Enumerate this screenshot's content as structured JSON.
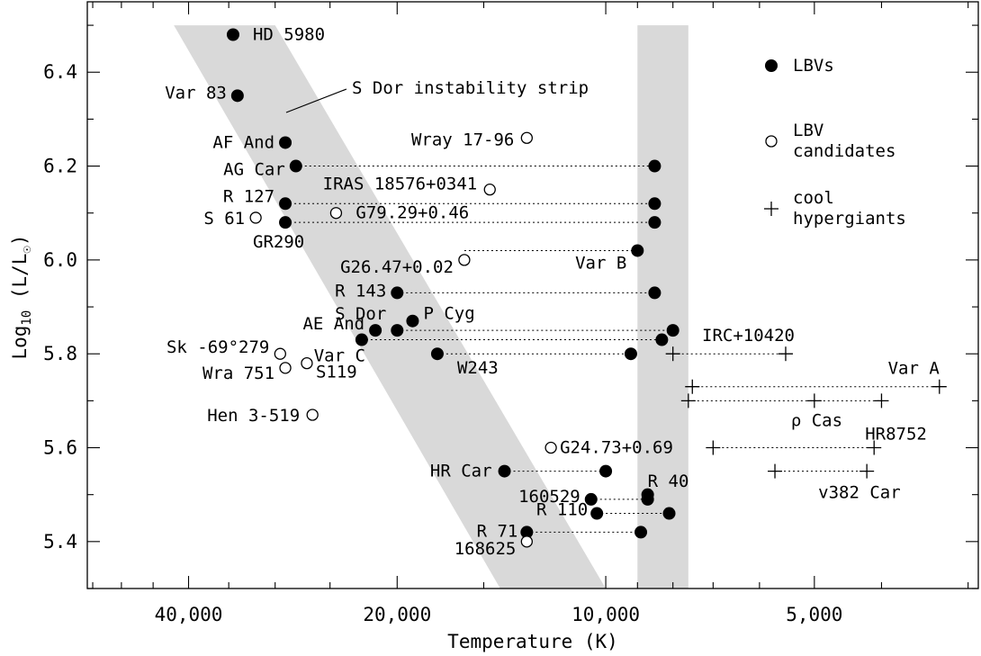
{
  "chart_data": {
    "type": "scatter",
    "xlabel": "Temperature (K)",
    "ylabel_prefix": "Log",
    "ylabel_sub": "10",
    "ylabel_suffix": " (L/L",
    "ylabel_end": ")",
    "x_scale": "log",
    "x_reversed": true,
    "xlim": [
      56000,
      2900
    ],
    "ylim": [
      5.3,
      6.55
    ],
    "x_ticks": [
      {
        "value": 40000,
        "label": "40,000"
      },
      {
        "value": 20000,
        "label": "20,000"
      },
      {
        "value": 10000,
        "label": "10,000"
      },
      {
        "value": 5000,
        "label": "5,000"
      }
    ],
    "y_ticks": [
      {
        "value": 5.4,
        "label": "5.4"
      },
      {
        "value": 5.6,
        "label": "5.6"
      },
      {
        "value": 5.8,
        "label": "5.8"
      },
      {
        "value": 6.0,
        "label": "6.0"
      },
      {
        "value": 6.2,
        "label": "6.2"
      },
      {
        "value": 6.4,
        "label": "6.4"
      }
    ],
    "grid": false,
    "legend_position": "top-right",
    "legend": [
      {
        "marker": "filled",
        "lines": [
          "LBVs"
        ]
      },
      {
        "marker": "open",
        "lines": [
          "LBV",
          "candidates"
        ]
      },
      {
        "marker": "plus",
        "lines": [
          "cool",
          "hypergiants"
        ]
      }
    ],
    "annotations": [
      {
        "text": "S Dor instability strip"
      }
    ],
    "bands": [
      {
        "name": "S Dor instability strip",
        "color": "#d9d9d9",
        "top": {
          "y": 6.5,
          "x": [
            42000,
            30000
          ]
        },
        "bottom": {
          "y": 5.3,
          "x": [
            14200,
            10000
          ]
        }
      },
      {
        "name": "eruption band",
        "color": "#d9d9d9",
        "x": [
          9000,
          7600
        ],
        "y": [
          5.3,
          6.5
        ]
      }
    ],
    "series": [
      {
        "name": "LBVs",
        "marker": "filled",
        "points": [
          {
            "label": "HD 5980",
            "x": 34500,
            "y": 6.48
          },
          {
            "label": "Var 83",
            "x": 34000,
            "y": 6.35
          },
          {
            "label": "AF And",
            "x": 29000,
            "y": 6.25
          },
          {
            "label": "AG Car",
            "x": 28000,
            "y": 6.2
          },
          {
            "label": "",
            "x": 8500,
            "y": 6.2
          },
          {
            "label": "R 127",
            "x": 29000,
            "y": 6.12
          },
          {
            "label": "",
            "x": 8500,
            "y": 6.12
          },
          {
            "label": "GR290",
            "x": 29000,
            "y": 6.08
          },
          {
            "label": "",
            "x": 8500,
            "y": 6.08
          },
          {
            "label": "Var B",
            "x": 9000,
            "y": 6.02
          },
          {
            "label": "R 143",
            "x": 20000,
            "y": 5.93
          },
          {
            "label": "",
            "x": 8500,
            "y": 5.93
          },
          {
            "label": "P Cyg",
            "x": 19000,
            "y": 5.87
          },
          {
            "label": "S Dor",
            "x": 20000,
            "y": 5.85
          },
          {
            "label": "",
            "x": 8000,
            "y": 5.85
          },
          {
            "label": "AE And",
            "x": 21500,
            "y": 5.85
          },
          {
            "label": "",
            "x": 8300,
            "y": 5.83
          },
          {
            "label": "Var C",
            "x": 22500,
            "y": 5.83
          },
          {
            "label": "W243",
            "x": 17500,
            "y": 5.8
          },
          {
            "label": "",
            "x": 9200,
            "y": 5.8
          },
          {
            "label": "HR Car",
            "x": 14000,
            "y": 5.55
          },
          {
            "label": "",
            "x": 10000,
            "y": 5.55
          },
          {
            "label": "160529",
            "x": 10500,
            "y": 5.49
          },
          {
            "label": "",
            "x": 8700,
            "y": 5.5
          },
          {
            "label": "R 40",
            "x": 8700,
            "y": 5.49
          },
          {
            "label": "R 110",
            "x": 10300,
            "y": 5.46
          },
          {
            "label": "",
            "x": 8100,
            "y": 5.46
          },
          {
            "label": "R 71",
            "x": 13000,
            "y": 5.42
          },
          {
            "label": "",
            "x": 8900,
            "y": 5.42
          }
        ]
      },
      {
        "name": "LBV candidates",
        "marker": "open",
        "points": [
          {
            "label": "Wray 17-96",
            "x": 13000,
            "y": 6.26
          },
          {
            "label": "IRAS 18576+0341",
            "x": 14700,
            "y": 6.15
          },
          {
            "label": "G79.29+0.46",
            "x": 24500,
            "y": 6.1
          },
          {
            "label": "S 61",
            "x": 32000,
            "y": 6.09
          },
          {
            "label": "G26.47+0.02",
            "x": 16000,
            "y": 6.0
          },
          {
            "label": "Sk -69°279",
            "x": 29500,
            "y": 5.8
          },
          {
            "label": "Wra 751",
            "x": 29000,
            "y": 5.77
          },
          {
            "label": "S119",
            "x": 27000,
            "y": 5.78
          },
          {
            "label": "Hen 3-519",
            "x": 26500,
            "y": 5.67
          },
          {
            "label": "G24.73+0.69",
            "x": 12000,
            "y": 5.6
          },
          {
            "label": "168625",
            "x": 13000,
            "y": 5.4
          }
        ]
      },
      {
        "name": "cool hypergiants",
        "marker": "plus",
        "points": [
          {
            "label": "IRC+10420",
            "x": 5500,
            "y": 5.8
          },
          {
            "label": "",
            "x": 8000,
            "y": 5.8
          },
          {
            "label": "Var A",
            "x": 3300,
            "y": 5.73
          },
          {
            "label": "",
            "x": 7500,
            "y": 5.73
          },
          {
            "label": "ρ Cas",
            "x": 5000,
            "y": 5.7
          },
          {
            "label": "",
            "x": 7600,
            "y": 5.7
          },
          {
            "label": "",
            "x": 4000,
            "y": 5.7
          },
          {
            "label": "HR8752",
            "x": 4100,
            "y": 5.6
          },
          {
            "label": "",
            "x": 7000,
            "y": 5.6
          },
          {
            "label": "v382 Car",
            "x": 4200,
            "y": 5.55
          },
          {
            "label": "",
            "x": 5700,
            "y": 5.55
          }
        ]
      }
    ],
    "connections": [
      [
        28000,
        6.2,
        8500,
        6.2
      ],
      [
        29000,
        6.12,
        8500,
        6.12
      ],
      [
        29000,
        6.08,
        8500,
        6.08
      ],
      [
        16000,
        6.02,
        9000,
        6.02
      ],
      [
        20000,
        5.93,
        8500,
        5.93
      ],
      [
        20000,
        5.85,
        8000,
        5.85
      ],
      [
        22500,
        5.83,
        8300,
        5.83
      ],
      [
        17500,
        5.8,
        9200,
        5.8
      ],
      [
        8000,
        5.8,
        5500,
        5.8
      ],
      [
        7500,
        5.73,
        3300,
        5.73
      ],
      [
        7600,
        5.7,
        4000,
        5.7
      ],
      [
        7000,
        5.6,
        4100,
        5.6
      ],
      [
        5700,
        5.55,
        4200,
        5.55
      ],
      [
        14000,
        5.55,
        10000,
        5.55
      ],
      [
        10500,
        5.49,
        8700,
        5.49
      ],
      [
        10300,
        5.46,
        8100,
        5.46
      ],
      [
        13000,
        5.42,
        8900,
        5.42
      ]
    ]
  }
}
